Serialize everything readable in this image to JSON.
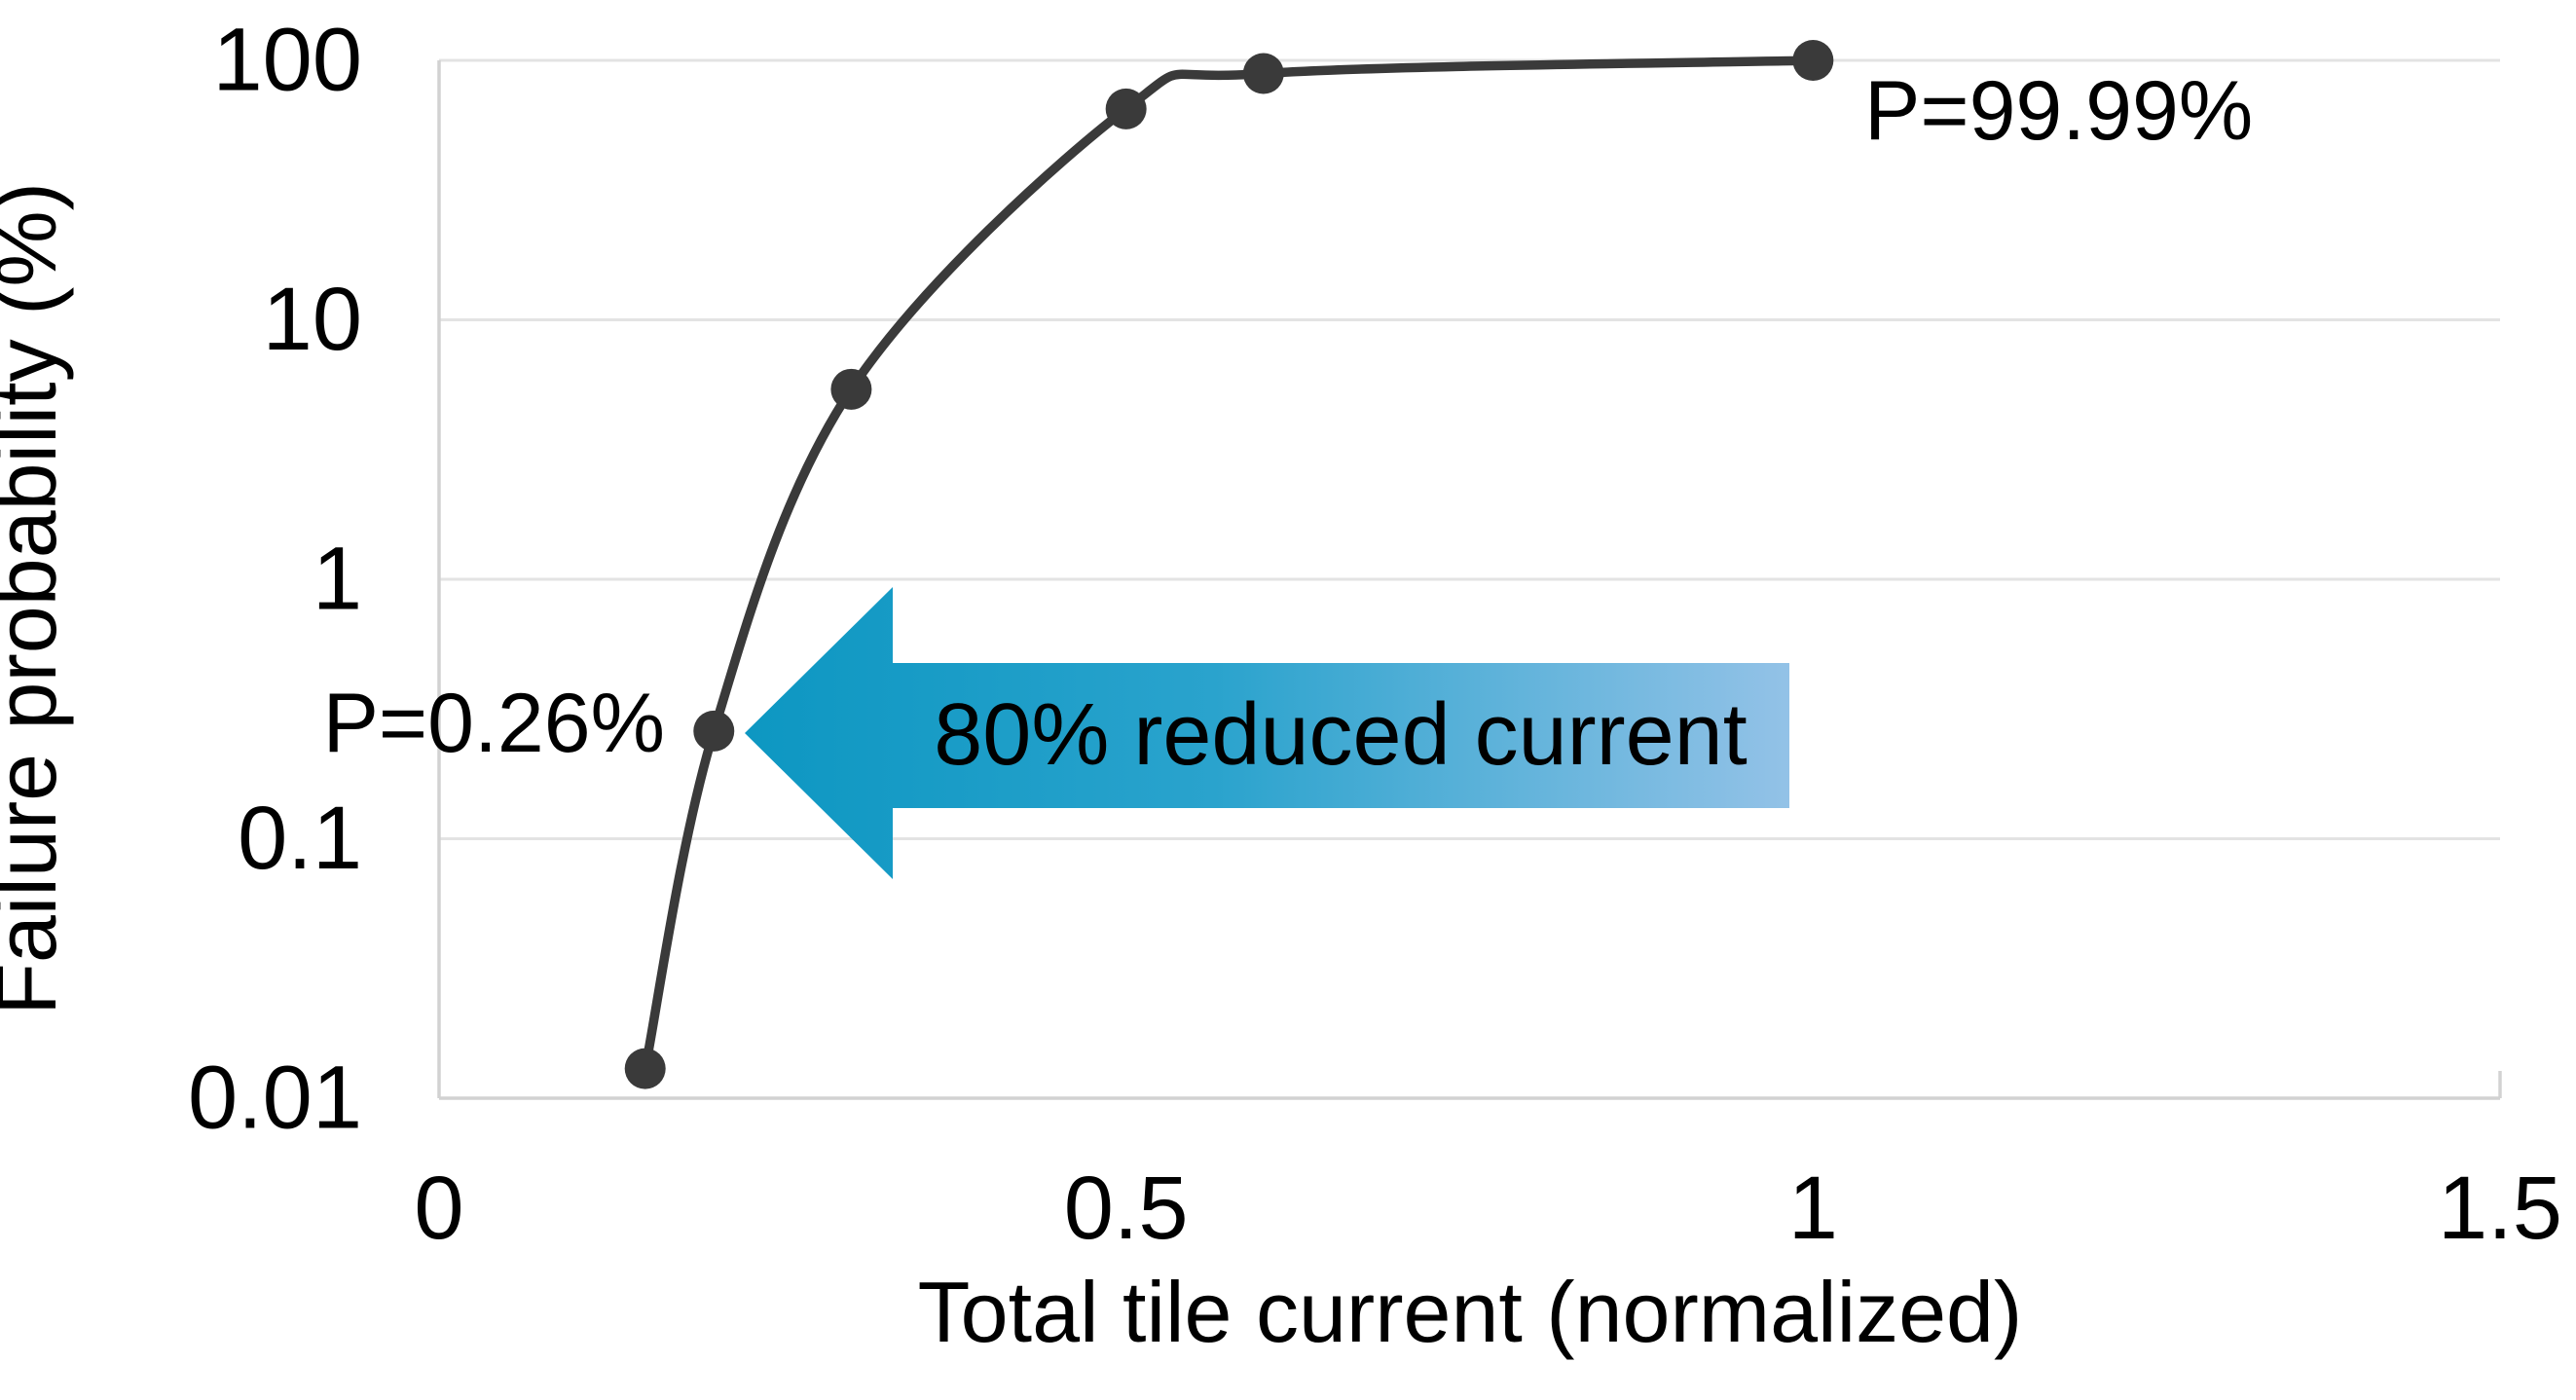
{
  "figure": {
    "xlabel": "Total tile current (normalized)",
    "ylabel": "Failure probability (%)"
  },
  "annotations": {
    "p_high": "P=99.99%",
    "p_low": "P=0.26%",
    "arrow_label": "80% reduced current"
  },
  "chart_data": {
    "type": "line",
    "title": "",
    "xlabel": "Total tile current (normalized)",
    "ylabel": "Failure probability (%)",
    "x": [
      0.15,
      0.2,
      0.3,
      0.5,
      0.6,
      1.0
    ],
    "y": [
      0.013,
      0.26,
      5.4,
      65,
      89,
      99.99
    ],
    "xlim": [
      0,
      1.5
    ],
    "ylim": [
      0.01,
      100
    ],
    "y_scale": "log",
    "x_ticks": [
      0,
      0.5,
      1,
      1.5
    ],
    "x_tick_labels": [
      "0",
      "0.5",
      "1",
      "1.5"
    ],
    "y_ticks": [
      100,
      10,
      1,
      0.1,
      0.01
    ],
    "y_tick_labels": [
      "100",
      "10",
      "1",
      "0.1",
      "0.01"
    ],
    "grid": "horizontal",
    "legend": "none",
    "marker": "circle",
    "annotations": [
      {
        "text": "P=99.99%",
        "x": 1.0,
        "y": 99.99,
        "side": "below-right"
      },
      {
        "text": "P=0.26%",
        "x": 0.2,
        "y": 0.26,
        "side": "left"
      },
      {
        "text": "80% reduced current",
        "kind": "left-arrow-callout",
        "points_to": {
          "x": 0.2,
          "y": 0.26
        }
      }
    ]
  },
  "colors": {
    "line": "#3a3a3a",
    "marker": "#3a3a3a",
    "grid": "#e3e3e3",
    "axis": "#d2d2d2",
    "text": "#000000",
    "arrow_start": "#0d97c2",
    "arrow_mid": "#2aa3cd",
    "arrow_end": "#93c2e7"
  }
}
